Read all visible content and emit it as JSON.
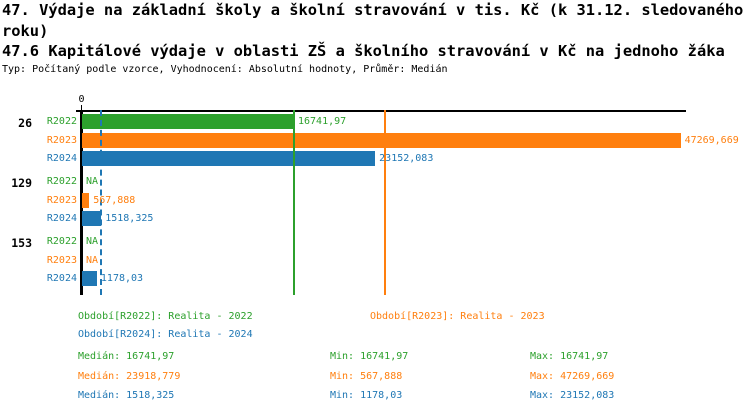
{
  "title": {
    "main": "47. Výdaje na základní školy a školní stravování v tis. Kč (k 31.12. sledovaného roku)",
    "sub": "47.6 Kapitálové výdaje v oblasti ZŠ a školního stravování v Kč na jednoho žáka",
    "meta": "Typ: Počítaný podle vzorce, Vyhodnocení: Absolutní hodnoty, Průměr: Medián"
  },
  "colors": {
    "R2022": "#2ca02c",
    "R2023": "#ff7f0e",
    "R2024": "#1f77b4",
    "axis": "#000000",
    "text": "#000000"
  },
  "chart_data": {
    "type": "bar",
    "orientation": "horizontal",
    "x_axis": {
      "origin_label": "0",
      "min": 0,
      "max_visible": 47700,
      "grid": false
    },
    "series_names": [
      "R2022",
      "R2023",
      "R2024"
    ],
    "groups": [
      {
        "id": "26",
        "bars": [
          {
            "series": "R2022",
            "value": 16741.97,
            "label": "16741,97"
          },
          {
            "series": "R2023",
            "value": 47269.669,
            "label": "47269,669"
          },
          {
            "series": "R2024",
            "value": 23152.083,
            "label": "23152,083"
          }
        ]
      },
      {
        "id": "129",
        "bars": [
          {
            "series": "R2022",
            "value": null,
            "label": "NA"
          },
          {
            "series": "R2023",
            "value": 567.888,
            "label": "567,888"
          },
          {
            "series": "R2024",
            "value": 1518.325,
            "label": "1518,325"
          }
        ]
      },
      {
        "id": "153",
        "bars": [
          {
            "series": "R2022",
            "value": null,
            "label": "NA"
          },
          {
            "series": "R2023",
            "value": null,
            "label": "NA"
          },
          {
            "series": "R2024",
            "value": 1178.03,
            "label": "1178,03"
          }
        ]
      }
    ],
    "median_lines": [
      {
        "series": "R2022",
        "value": 16741.97,
        "style": "solid"
      },
      {
        "series": "R2023",
        "value": 23918.779,
        "style": "solid"
      },
      {
        "series": "R2024",
        "value": 1518.325,
        "style": "dashed"
      }
    ],
    "legend": [
      {
        "series": "R2022",
        "label": "Období[R2022]: Realita - 2022"
      },
      {
        "series": "R2023",
        "label": "Období[R2023]: Realita - 2023"
      },
      {
        "series": "R2024",
        "label": "Období[R2024]: Realita - 2024"
      }
    ],
    "stats": [
      {
        "series": "R2022",
        "median": "Medián: 16741,97",
        "min": "Min: 16741,97",
        "max": "Max: 16741,97"
      },
      {
        "series": "R2023",
        "median": "Medián: 23918,779",
        "min": "Min: 567,888",
        "max": "Max: 47269,669"
      },
      {
        "series": "R2024",
        "median": "Medián: 1518,325",
        "min": "Min: 1178,03",
        "max": "Max: 23152,083"
      }
    ]
  }
}
